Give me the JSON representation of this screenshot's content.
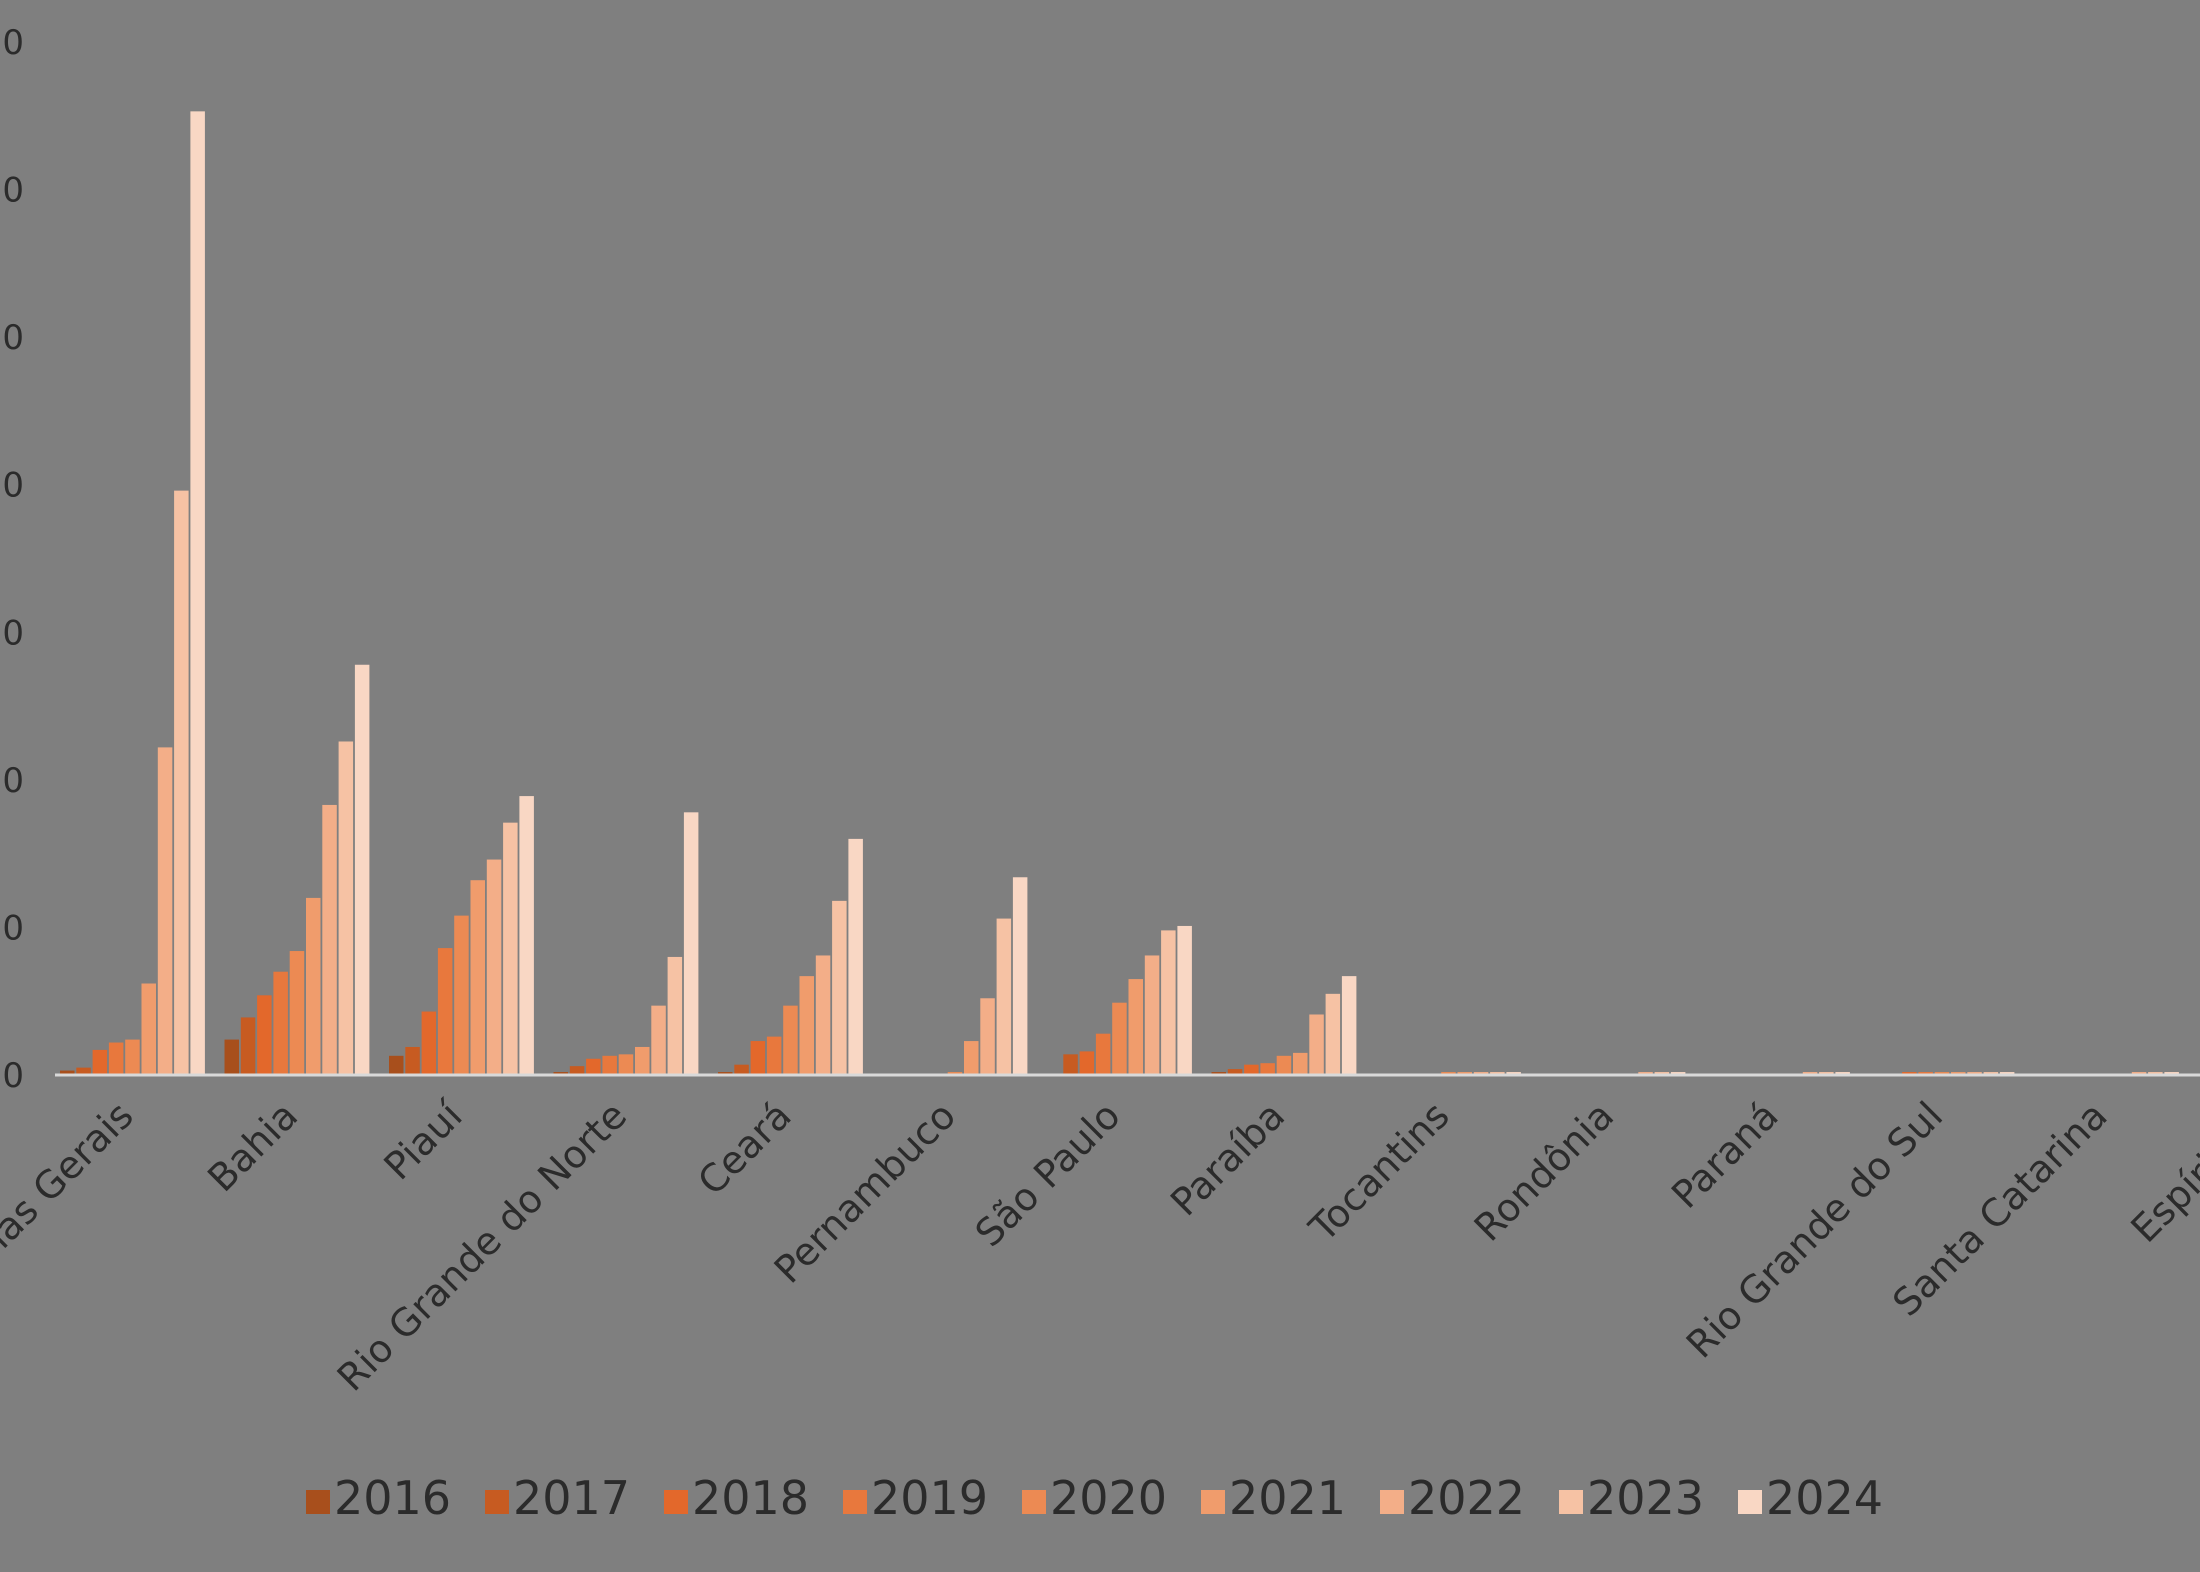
{
  "chart_data": {
    "type": "bar",
    "title": "",
    "xlabel": "",
    "ylabel": "",
    "ytick_labels": [
      "0",
      "0",
      "0",
      "0",
      "0",
      "0",
      "0",
      "0"
    ],
    "ylim": [
      0,
      7
    ],
    "grid": false,
    "legend_position": "bottom",
    "categories": [
      "Minas Gerais",
      "Bahia",
      "Piauí",
      "Rio Grande do Norte",
      "Ceará",
      "Pernambuco",
      "São Paulo",
      "Paraíba",
      "Tocantins",
      "Rondônia",
      "Paraná",
      "Rio Grande do Sul",
      "Santa Catarina",
      "Espírito Santo"
    ],
    "category_labels": [
      "nas Gerais",
      "Bahia",
      "Piauí",
      "Rio Grande do Norte",
      "Ceará",
      "Pernambuco",
      "São Paulo",
      "Paraíba",
      "Tocantins",
      "Rondônia",
      "Paraná",
      "Rio Grande do Sul",
      "Santa Catarina",
      "Espírito S"
    ],
    "series": [
      {
        "name": "2016",
        "color": "#a84f1c",
        "values": [
          0.03,
          0.24,
          0.13,
          0.02,
          0.02,
          0.0,
          0.01,
          0.02,
          0.0,
          0.0,
          0.0,
          0.0,
          0.0,
          0.0
        ]
      },
      {
        "name": "2017",
        "color": "#c75b21",
        "values": [
          0.05,
          0.39,
          0.19,
          0.06,
          0.07,
          0.01,
          0.14,
          0.04,
          0.0,
          0.0,
          0.0,
          0.01,
          0.0,
          0.0
        ]
      },
      {
        "name": "2018",
        "color": "#e3682b",
        "values": [
          0.17,
          0.54,
          0.43,
          0.11,
          0.23,
          0.01,
          0.16,
          0.07,
          0.01,
          0.0,
          0.0,
          0.02,
          0.0,
          0.01
        ]
      },
      {
        "name": "2019",
        "color": "#e8783d",
        "values": [
          0.22,
          0.7,
          0.86,
          0.13,
          0.26,
          0.01,
          0.28,
          0.08,
          0.01,
          0.01,
          0.0,
          0.02,
          0.0,
          0.01
        ]
      },
      {
        "name": "2020",
        "color": "#ec8a53",
        "values": [
          0.24,
          0.84,
          1.08,
          0.14,
          0.47,
          0.02,
          0.49,
          0.13,
          0.02,
          0.01,
          0.01,
          0.02,
          0.01,
          0.01
        ]
      },
      {
        "name": "2021",
        "color": "#f09c6c",
        "values": [
          0.62,
          1.2,
          1.32,
          0.19,
          0.67,
          0.23,
          0.65,
          0.15,
          0.02,
          0.01,
          0.01,
          0.02,
          0.01,
          0.02
        ]
      },
      {
        "name": "2022",
        "color": "#f3ae88",
        "values": [
          2.22,
          1.83,
          1.46,
          0.47,
          0.81,
          0.52,
          0.81,
          0.41,
          0.02,
          0.02,
          0.02,
          0.02,
          0.02,
          0.02
        ]
      },
      {
        "name": "2023",
        "color": "#f6c2a4",
        "values": [
          3.96,
          2.26,
          1.71,
          0.8,
          1.18,
          1.06,
          0.98,
          0.55,
          0.02,
          0.02,
          0.02,
          0.02,
          0.02,
          0.02
        ]
      },
      {
        "name": "2024",
        "color": "#f9d7c4",
        "values": [
          6.53,
          2.78,
          1.89,
          1.78,
          1.6,
          1.34,
          1.01,
          0.67,
          0.02,
          0.02,
          0.02,
          0.02,
          0.02,
          0.02
        ]
      }
    ]
  }
}
